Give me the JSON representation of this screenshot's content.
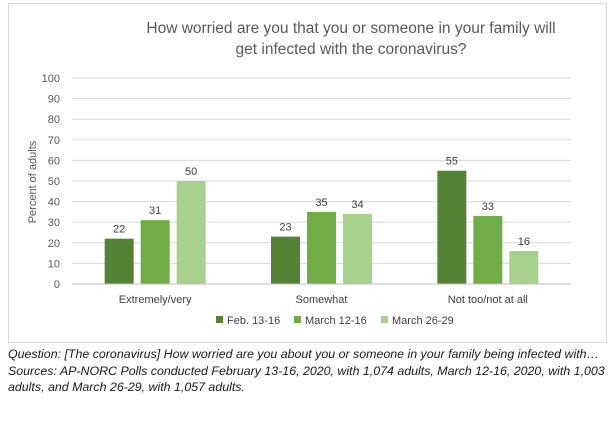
{
  "chart_data": {
    "type": "bar",
    "title_lines": [
      "How worried are you that you or someone in your family will",
      "get infected with the coronavirus?"
    ],
    "ylabel": "Percent of adults",
    "xlabel": "",
    "ylim": [
      0,
      100
    ],
    "yticks": [
      0,
      10,
      20,
      30,
      40,
      50,
      60,
      70,
      80,
      90,
      100
    ],
    "grid": true,
    "legend_position": "bottom",
    "categories": [
      "Extremely/very",
      "Somewhat",
      "Not too/not at all"
    ],
    "series": [
      {
        "name": "Feb. 13-16",
        "color": "#548235",
        "values": [
          22,
          23,
          55
        ]
      },
      {
        "name": "March 12-16",
        "color": "#70ad47",
        "values": [
          31,
          35,
          33
        ]
      },
      {
        "name": "March 26-29",
        "color": "#a9d18e",
        "values": [
          50,
          34,
          16
        ]
      }
    ]
  },
  "notes": {
    "question": "Question: [The coronavirus] How worried are you about you or someone in your family being infected with…",
    "sources": "Sources: AP-NORC Polls conducted February 13-16, 2020, with 1,074 adults, March 12-16, 2020, with 1,003 adults, and March 26-29, with 1,057 adults."
  }
}
